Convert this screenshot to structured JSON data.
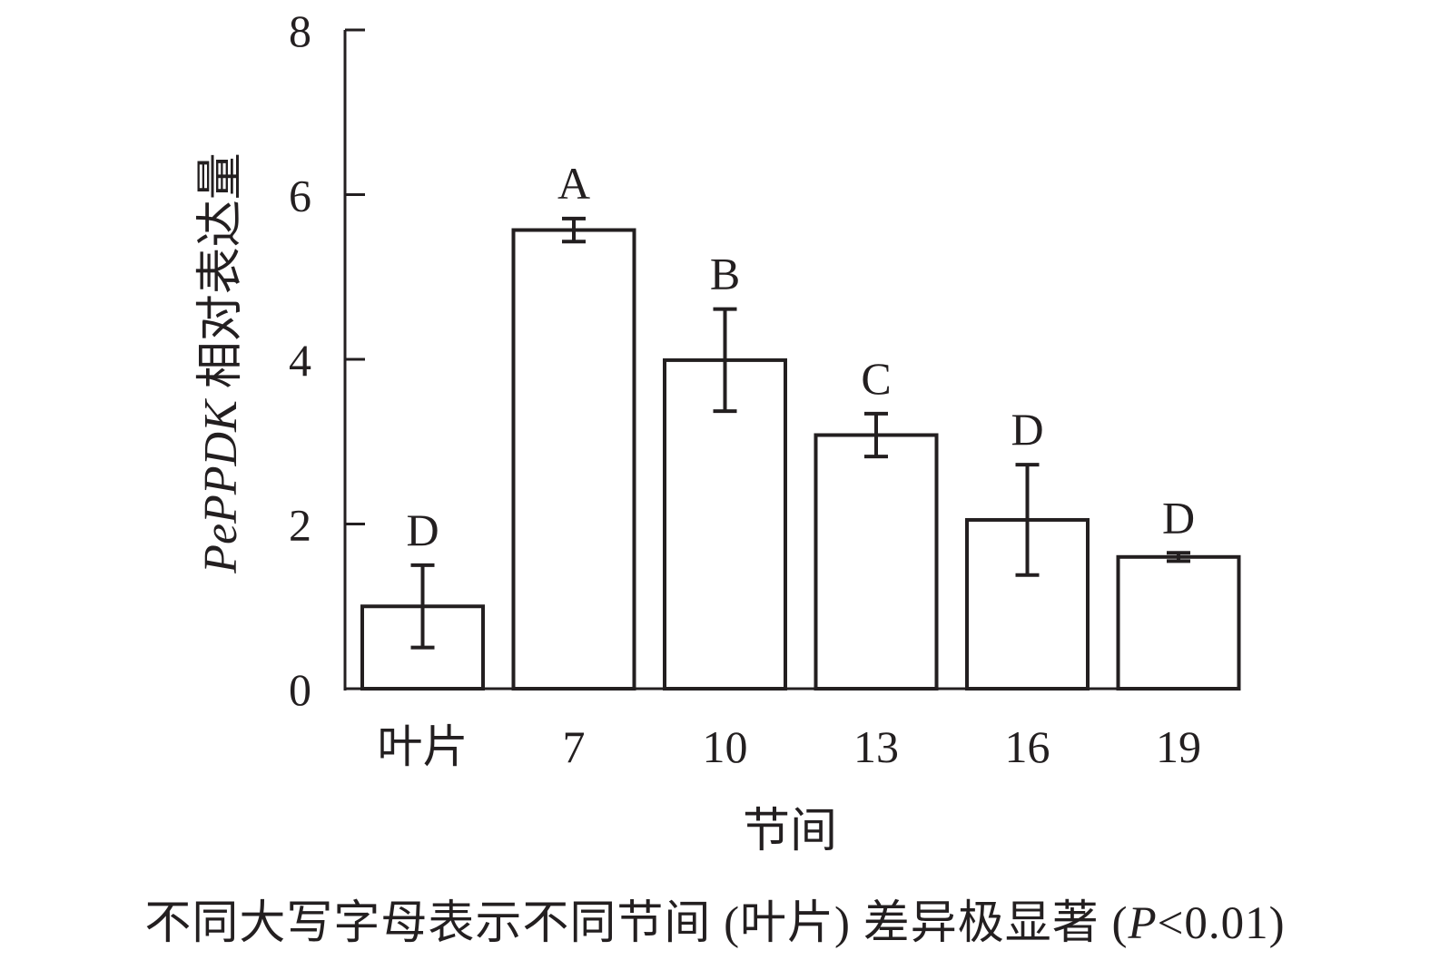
{
  "chart_data": {
    "type": "bar",
    "categories": [
      "叶片",
      "7",
      "10",
      "13",
      "16",
      "19"
    ],
    "values": [
      1.0,
      5.57,
      3.99,
      3.08,
      2.05,
      1.6
    ],
    "errors": [
      0.5,
      0.14,
      0.62,
      0.26,
      0.67,
      0.05
    ],
    "significance": [
      "D",
      "A",
      "B",
      "C",
      "D",
      "D"
    ],
    "title": "",
    "xlabel": "节间",
    "ylabel_italic": "PePPDK",
    "ylabel_rest": "相对表达量",
    "ylim": [
      0,
      8
    ],
    "yticks": [
      "0",
      "2",
      "4",
      "6",
      "8"
    ],
    "grid": false,
    "bar_fill": "#ffffff",
    "bar_stroke": "#231f20"
  },
  "caption": {
    "prefix": "不同大写字母表示不同节间 (叶片) 差异极显著 (",
    "italic": "P",
    "suffix": "<0.01)"
  }
}
